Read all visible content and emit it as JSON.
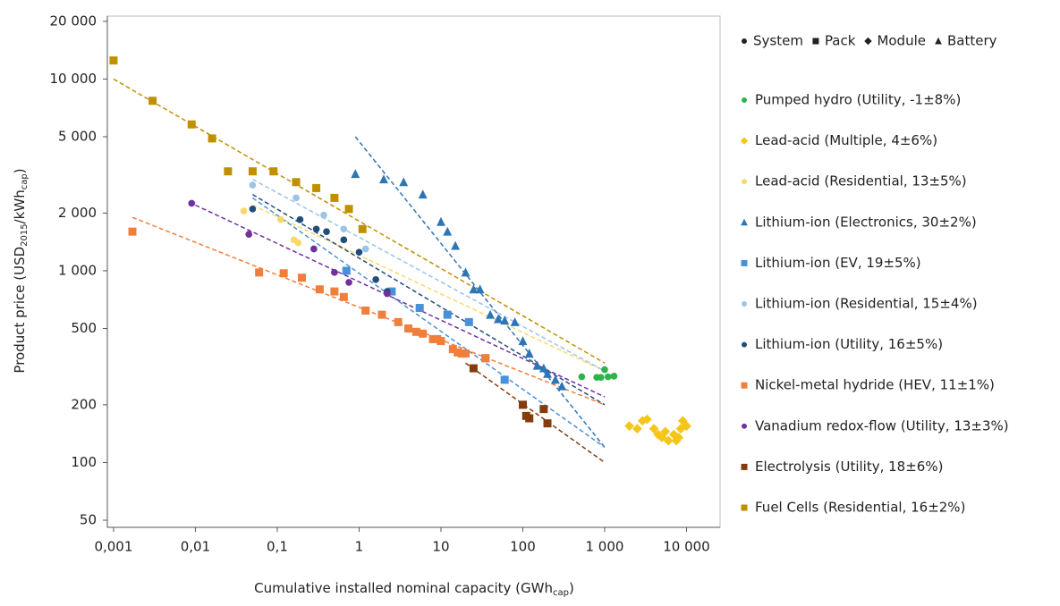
{
  "chart_data": {
    "type": "scatter",
    "xscale": "log",
    "yscale": "log",
    "xlim": [
      0.00084,
      25700
    ],
    "ylim": [
      45.9,
      21300
    ],
    "xticks": [
      {
        "value": 0.001,
        "label": "0,001"
      },
      {
        "value": 0.01,
        "label": "0,01"
      },
      {
        "value": 0.1,
        "label": "0,1"
      },
      1,
      10,
      100,
      {
        "value": 1000,
        "label": "1 000"
      },
      {
        "value": 10000,
        "label": "10 000"
      }
    ],
    "yticks": [
      50,
      100,
      200,
      500,
      {
        "value": 1000,
        "label": "1 000"
      },
      {
        "value": 2000,
        "label": "2 000"
      },
      {
        "value": 5000,
        "label": "5 000"
      },
      {
        "value": 10000,
        "label": "10 000"
      },
      {
        "value": 20000,
        "label": "20 000"
      }
    ],
    "xlabel": [
      "Cumulative installed nominal capacity (GWh",
      "cap",
      ")"
    ],
    "ylabel": [
      "Product price (USD",
      "2015",
      "/kWh",
      "cap",
      ")"
    ],
    "marker_legend": [
      {
        "name": "System",
        "marker": "circle"
      },
      {
        "name": "Pack",
        "marker": "square"
      },
      {
        "name": "Module",
        "marker": "diamond"
      },
      {
        "name": "Battery",
        "marker": "triangle"
      }
    ],
    "series": [
      {
        "name": "Pumped hydro (Utility, -1±8%)",
        "color": "#2db34a",
        "marker": "circle",
        "x": [
          525,
          800,
          900,
          1000,
          1100,
          1300
        ],
        "values": [
          280,
          278,
          278,
          305,
          280,
          282
        ]
      },
      {
        "name": "Lead-acid (Multiple, 4±6%)",
        "color": "#f5c518",
        "marker": "diamond",
        "x": [
          2000,
          2500,
          2900,
          3300,
          4000,
          4500,
          5000,
          5500,
          6000,
          7000,
          7500,
          8000,
          8500,
          9000,
          10000
        ],
        "values": [
          155,
          150,
          165,
          168,
          150,
          140,
          135,
          145,
          130,
          140,
          130,
          135,
          150,
          165,
          155
        ]
      },
      {
        "name": "Lead-acid (Residential, 13±5%)",
        "color": "#f7d96b",
        "marker": "circle",
        "x": [
          0.039,
          0.11,
          0.16,
          0.18
        ],
        "values": [
          2050,
          1850,
          1450,
          1400
        ],
        "trend": {
          "x": [
            0.05,
            1000
          ],
          "values": [
            2200,
            300
          ]
        }
      },
      {
        "name": "Lithium-ion (Electronics, 30±2%)",
        "color": "#2e75b6",
        "marker": "triangle",
        "x": [
          0.9,
          2,
          3.5,
          6,
          10,
          12,
          15,
          20,
          25,
          30,
          40,
          50,
          60,
          80,
          100,
          120,
          150,
          180,
          200,
          250,
          300
        ],
        "values": [
          3200,
          3000,
          2900,
          2500,
          1800,
          1600,
          1350,
          980,
          800,
          800,
          590,
          560,
          550,
          540,
          430,
          370,
          320,
          310,
          290,
          270,
          250
        ],
        "trend": {
          "x": [
            0.9,
            1000
          ],
          "values": [
            5000,
            120
          ]
        }
      },
      {
        "name": "Lithium-ion (EV, 19±5%)",
        "color": "#4a90d9",
        "marker": "square",
        "x": [
          0.7,
          2.5,
          5.5,
          12,
          22,
          35,
          60,
          100
        ],
        "values": [
          1000,
          780,
          640,
          590,
          540,
          350,
          270,
          200
        ],
        "trend": {
          "x": [
            0.05,
            1000
          ],
          "values": [
            2400,
            120
          ]
        }
      },
      {
        "name": "Lithium-ion (Residential, 15±4%)",
        "color": "#9dc3e6",
        "marker": "circle",
        "x": [
          0.05,
          0.17,
          0.37,
          0.65,
          1.2
        ],
        "values": [
          2800,
          2400,
          1950,
          1650,
          1300
        ],
        "trend": {
          "x": [
            0.05,
            1000
          ],
          "values": [
            3000,
            300
          ]
        }
      },
      {
        "name": "Lithium-ion (Utility, 16±5%)",
        "color": "#1f4e79",
        "marker": "circle",
        "x": [
          0.05,
          0.19,
          0.3,
          0.4,
          0.65,
          1,
          1.6,
          2.2
        ],
        "values": [
          2100,
          1850,
          1650,
          1600,
          1450,
          1250,
          900,
          780
        ],
        "trend": {
          "x": [
            0.05,
            1000
          ],
          "values": [
            2500,
            200
          ]
        }
      },
      {
        "name": "Nickel-metal hydride (HEV, 11±1%)",
        "color": "#f07f3c",
        "marker": "square",
        "x": [
          0.0017,
          0.06,
          0.12,
          0.2,
          0.33,
          0.5,
          0.65,
          1.2,
          1.9,
          3,
          4,
          5,
          6,
          8,
          9,
          10,
          14,
          16,
          18,
          20,
          35
        ],
        "values": [
          1600,
          980,
          970,
          920,
          800,
          780,
          730,
          620,
          590,
          540,
          500,
          480,
          470,
          440,
          440,
          430,
          390,
          375,
          370,
          370,
          350
        ],
        "trend": {
          "x": [
            0.0017,
            1000
          ],
          "values": [
            1900,
            200
          ]
        }
      },
      {
        "name": "Vanadium redox-flow (Utility, 13±3%)",
        "color": "#7030a0",
        "marker": "circle",
        "x": [
          0.009,
          0.045,
          0.28,
          0.5,
          0.75,
          2.2
        ],
        "values": [
          2250,
          1550,
          1300,
          980,
          870,
          760
        ],
        "trend": {
          "x": [
            0.01,
            1000
          ],
          "values": [
            2200,
            220
          ]
        }
      },
      {
        "name": "Electrolysis (Utility, 18±6%)",
        "color": "#843c0c",
        "marker": "square",
        "x": [
          25,
          100,
          110,
          120,
          180,
          200
        ],
        "values": [
          310,
          200,
          175,
          170,
          190,
          160
        ],
        "trend": {
          "x": [
            20,
            1000
          ],
          "values": [
            330,
            100
          ]
        }
      },
      {
        "name": "Fuel Cells (Residential, 16±2%)",
        "color": "#bf9000",
        "marker": "square",
        "x": [
          0.001,
          0.003,
          0.009,
          0.016,
          0.025,
          0.05,
          0.09,
          0.17,
          0.3,
          0.5,
          0.75,
          1.1
        ],
        "values": [
          12500,
          7700,
          5800,
          4900,
          3300,
          3300,
          3300,
          2900,
          2700,
          2400,
          2100,
          1650
        ],
        "trend": {
          "x": [
            0.001,
            1000
          ],
          "values": [
            10000,
            330
          ]
        }
      }
    ]
  }
}
